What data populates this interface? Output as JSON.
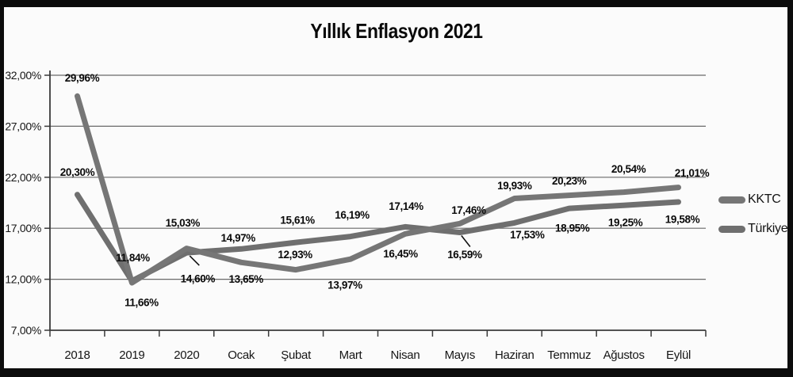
{
  "chart_data": {
    "type": "line",
    "title": "Yıllık Enflasyon 2021",
    "categories": [
      "2018",
      "2019",
      "2020",
      "Ocak",
      "Şubat",
      "Mart",
      "Nisan",
      "Mayıs",
      "Haziran",
      "Temmuz",
      "Ağustos",
      "Eylül"
    ],
    "series": [
      {
        "name": "KKTC",
        "color": "#767676",
        "values": [
          29.96,
          11.66,
          15.03,
          13.65,
          12.93,
          13.97,
          16.45,
          17.46,
          19.93,
          20.23,
          20.54,
          21.01
        ],
        "labels": [
          "29,96%",
          "11,66%",
          "15,03%",
          "13,65%",
          "12,93%",
          "13,97%",
          "16,45%",
          "17,46%",
          "19,93%",
          "20,23%",
          "20,54%",
          "21,01%"
        ]
      },
      {
        "name": "Türkiye",
        "color": "#6f6f6f",
        "values": [
          20.3,
          11.84,
          14.6,
          14.97,
          15.61,
          16.19,
          17.14,
          16.59,
          17.53,
          18.95,
          19.25,
          19.58
        ],
        "labels": [
          "20,30%",
          "11,84%",
          "14,60%",
          "14,97%",
          "15,61%",
          "16,19%",
          "17,14%",
          "16,59%",
          "17,53%",
          "18,95%",
          "19,25%",
          "19,58%"
        ]
      }
    ],
    "ylim": [
      7,
      32
    ],
    "yticks": {
      "values": [
        32,
        27,
        22,
        17,
        12,
        7
      ],
      "labels": [
        "32,00%",
        "27,00%",
        "22,00%",
        "17,00%",
        "12,00%",
        "7,00%"
      ]
    },
    "grid": true,
    "legend_position": "right-middle",
    "label_offsets": [
      [
        [
          6,
          -23
        ],
        [
          12,
          25
        ],
        [
          -5,
          -32
        ],
        [
          6,
          21
        ],
        [
          -1,
          -19
        ],
        [
          -7,
          33
        ],
        [
          -6,
          25
        ],
        [
          11,
          -17
        ],
        [
          0,
          -16
        ],
        [
          0,
          -18
        ],
        [
          6,
          -29
        ],
        [
          17,
          -18
        ]
      ],
      [
        [
          0,
          -28
        ],
        [
          1,
          -29
        ],
        [
          14,
          33
        ],
        [
          -4,
          -14
        ],
        [
          2,
          -28
        ],
        [
          2,
          -27
        ],
        [
          1,
          -26
        ],
        [
          6,
          28
        ],
        [
          16,
          15
        ],
        [
          4,
          25
        ],
        [
          2,
          22
        ],
        [
          5,
          22
        ]
      ]
    ],
    "leader_lines": [
      {
        "series": 1,
        "index": 2,
        "from": [
          4,
          4
        ],
        "to": [
          16,
          16
        ]
      },
      {
        "series": 1,
        "index": 7,
        "from": [
          2,
          4
        ],
        "to": [
          13,
          18
        ]
      }
    ],
    "frame_color": "#0c0c0c",
    "gridline_color": "#6a6a6a",
    "axis_color": "#3a3a3a"
  }
}
